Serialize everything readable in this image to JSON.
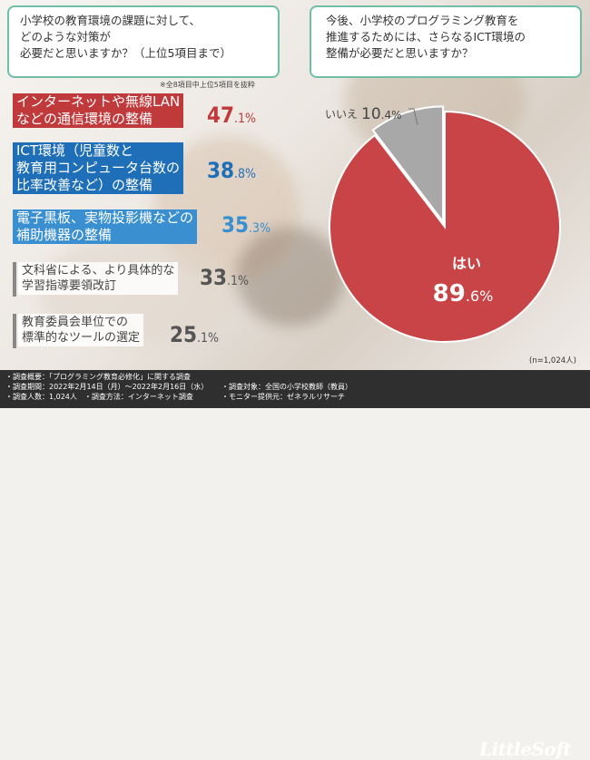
{
  "left_question": [
    "小学校の教育環境の課題に対して、",
    "どのような対策が",
    "必要だと思いますか？（上位5項目まで）"
  ],
  "right_question": [
    "今後、小学校のプログラミング教育を",
    "推進するためには、さらなるICT環境の",
    "整備が必要だと思いますか？"
  ],
  "note": "※全8項目中上位5項目を抜粋",
  "items": [
    {
      "lines": [
        "インターネットや無線LAN",
        "などの通信環境の整備"
      ],
      "value_int": "47",
      "value_dec": ".1%",
      "value": 47.1,
      "color": "#c0393b",
      "value_color": "#c0393b"
    },
    {
      "lines": [
        "ICT環境（児童数と",
        "教育用コンピュータ台数の",
        "比率改善など）の整備"
      ],
      "value_int": "38",
      "value_dec": ".8%",
      "value": 38.8,
      "color": "#1f6fb8",
      "value_color": "#1f6fb8"
    },
    {
      "lines": [
        "電子黒板、実物投影機などの",
        "補助機器の整備"
      ],
      "value_int": "35",
      "value_dec": ".3%",
      "value": 35.3,
      "color": "#3a8fd0",
      "value_color": "#3a8fd0"
    },
    {
      "lines": [
        "文科省による、より具体的な",
        "学習指導要領改訂"
      ],
      "value_int": "33",
      "value_dec": ".1%",
      "value": 33.1,
      "color": "#777777",
      "value_color": "#555555"
    },
    {
      "lines": [
        "教育委員会単位での",
        "標準的なツールの選定"
      ],
      "value_int": "25",
      "value_dec": ".1%",
      "value": 25.1,
      "color": "#777777",
      "value_color": "#555555"
    }
  ],
  "chart_data": {
    "type": "pie",
    "categories": [
      "はい",
      "いいえ"
    ],
    "values": [
      89.6,
      10.4
    ],
    "colors": [
      "#c84446",
      "#a8a8a8"
    ],
    "labels": {
      "yes_name": "はい",
      "yes_value_int": "89",
      "yes_value_dec": ".6%",
      "no_name": "いいえ",
      "no_value_int": "10",
      "no_value_dec": ".4%"
    }
  },
  "sample_size": "(n=1,024人)",
  "footer": {
    "col1": [
      "・調査概要：「プログラミング教育必修化」に関する調査",
      "・調査期間：2022年2月14日（月）～2022年2月16日（水）",
      "・調査人数：1,024人　・調査方法：インターネット調査"
    ],
    "col2": [
      "・調査対象：全国の小学校教師（教員）",
      "・モニター提供元：ゼネラルリサーチ"
    ],
    "logo": "LittleSoft"
  }
}
